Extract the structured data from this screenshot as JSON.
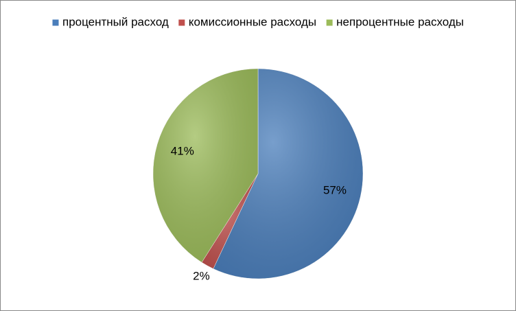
{
  "chart_data": {
    "type": "pie",
    "categories": [
      "процентный расход",
      "комиссионные расходы",
      "непроцентные расходы"
    ],
    "values": [
      57,
      2,
      41
    ],
    "value_labels": [
      "57%",
      "2%",
      "41%"
    ],
    "colors": [
      "#4a7ebb",
      "#c0504d",
      "#9bbb59"
    ],
    "legend": "top"
  }
}
